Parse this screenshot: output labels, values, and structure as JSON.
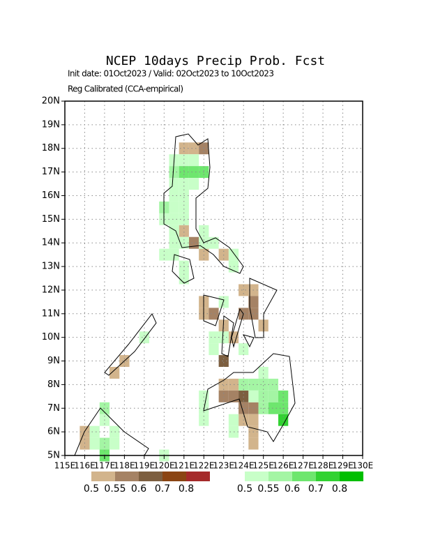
{
  "title": "NCEP 10days Precip Prob. Fcst",
  "subtitle": "Init date: 01Oct2023 / Valid: 02Oct2023 to 10Oct2023",
  "note": "Reg Calibrated (CCA-empirical)",
  "map": {
    "xlim": [
      115,
      130
    ],
    "ylim": [
      5,
      20
    ],
    "grid": true,
    "xticks": [
      {
        "value": 115,
        "label": "115E"
      },
      {
        "value": 116,
        "label": "116E"
      },
      {
        "value": 117,
        "label": "117E"
      },
      {
        "value": 118,
        "label": "118E"
      },
      {
        "value": 119,
        "label": "119E"
      },
      {
        "value": 120,
        "label": "120E"
      },
      {
        "value": 121,
        "label": "121E"
      },
      {
        "value": 122,
        "label": "122E"
      },
      {
        "value": 123,
        "label": "123E"
      },
      {
        "value": 124,
        "label": "124E"
      },
      {
        "value": 125,
        "label": "125E"
      },
      {
        "value": 126,
        "label": "126E"
      },
      {
        "value": 127,
        "label": "127E"
      },
      {
        "value": 128,
        "label": "128E"
      },
      {
        "value": 129,
        "label": "129E"
      },
      {
        "value": 130,
        "label": "130E"
      }
    ],
    "yticks": [
      {
        "value": 5,
        "label": "5N"
      },
      {
        "value": 6,
        "label": "6N"
      },
      {
        "value": 7,
        "label": "7N"
      },
      {
        "value": 8,
        "label": "8N"
      },
      {
        "value": 9,
        "label": "9N"
      },
      {
        "value": 10,
        "label": "10N"
      },
      {
        "value": 11,
        "label": "11N"
      },
      {
        "value": 12,
        "label": "12N"
      },
      {
        "value": 13,
        "label": "13N"
      },
      {
        "value": 14,
        "label": "14N"
      },
      {
        "value": 15,
        "label": "15N"
      },
      {
        "value": 16,
        "label": "16N"
      },
      {
        "value": 17,
        "label": "17N"
      },
      {
        "value": 18,
        "label": "18N"
      },
      {
        "value": 19,
        "label": "19N"
      },
      {
        "value": 20,
        "label": "20N"
      }
    ],
    "dry_cells": [
      [
        121,
        18,
        0
      ],
      [
        121.5,
        18,
        0
      ],
      [
        122,
        18,
        1
      ],
      [
        121,
        14.5,
        0
      ],
      [
        121.5,
        14,
        1
      ],
      [
        122,
        13.5,
        0
      ],
      [
        123,
        13.5,
        0
      ],
      [
        122,
        11.5,
        0
      ],
      [
        122,
        11,
        0
      ],
      [
        122.5,
        11,
        1
      ],
      [
        123,
        10.5,
        0
      ],
      [
        123,
        9,
        2
      ],
      [
        124,
        12,
        0
      ],
      [
        124.5,
        12,
        0
      ],
      [
        124.5,
        11.5,
        1
      ],
      [
        124,
        11,
        1
      ],
      [
        124.5,
        11,
        1
      ],
      [
        125,
        10.5,
        0
      ],
      [
        123.5,
        10,
        0
      ],
      [
        123,
        8,
        0
      ],
      [
        123.5,
        8,
        0
      ],
      [
        123,
        7.5,
        1
      ],
      [
        123.5,
        7.5,
        1
      ],
      [
        124,
        7.5,
        2
      ],
      [
        124,
        7,
        1
      ],
      [
        124.5,
        7,
        1
      ],
      [
        124,
        6.5,
        0
      ],
      [
        124.5,
        6.5,
        0
      ],
      [
        124.5,
        6,
        0
      ],
      [
        124.5,
        5.5,
        0
      ],
      [
        116,
        6,
        0
      ],
      [
        116,
        5.5,
        0
      ],
      [
        118,
        9,
        0
      ],
      [
        117.5,
        8.5,
        0
      ]
    ],
    "wet_cells": [
      [
        120.5,
        17.5,
        0
      ],
      [
        121,
        17.5,
        0
      ],
      [
        121.5,
        17.5,
        0
      ],
      [
        120.5,
        17,
        1
      ],
      [
        121,
        17,
        2
      ],
      [
        121.5,
        17,
        2
      ],
      [
        122,
        17,
        2
      ],
      [
        120.5,
        16.5,
        0
      ],
      [
        121,
        16.5,
        0
      ],
      [
        121.5,
        16.5,
        0
      ],
      [
        120.5,
        16,
        0
      ],
      [
        121,
        16,
        0
      ],
      [
        120,
        15.5,
        1
      ],
      [
        120.5,
        15.5,
        0
      ],
      [
        121,
        15.5,
        0
      ],
      [
        120,
        15,
        0
      ],
      [
        120.5,
        15,
        0
      ],
      [
        121,
        15,
        0
      ],
      [
        120.5,
        14.5,
        0
      ],
      [
        122,
        14.5,
        0
      ],
      [
        120.5,
        14,
        0
      ],
      [
        121,
        14,
        0
      ],
      [
        122,
        14,
        0
      ],
      [
        122.5,
        14,
        0
      ],
      [
        120,
        13.5,
        0
      ],
      [
        120.5,
        13.5,
        0
      ],
      [
        123.5,
        13.5,
        0
      ],
      [
        121,
        13,
        0
      ],
      [
        123.5,
        13,
        0
      ],
      [
        121,
        12.5,
        0
      ],
      [
        123,
        11.5,
        0
      ],
      [
        119,
        10,
        0
      ],
      [
        122.5,
        10,
        0
      ],
      [
        123,
        10,
        0
      ],
      [
        122.5,
        9.5,
        0
      ],
      [
        124,
        9.5,
        0
      ],
      [
        125,
        8.5,
        0
      ],
      [
        124,
        8,
        1
      ],
      [
        124.5,
        8,
        1
      ],
      [
        125,
        8,
        1
      ],
      [
        125.5,
        8,
        1
      ],
      [
        125,
        7.5,
        1
      ],
      [
        125.5,
        7.5,
        1
      ],
      [
        126,
        7.5,
        2
      ],
      [
        122,
        7.5,
        0
      ],
      [
        124.5,
        7.5,
        0
      ],
      [
        122,
        7,
        0
      ],
      [
        125,
        7,
        1
      ],
      [
        125.5,
        7,
        2
      ],
      [
        126,
        7,
        2
      ],
      [
        122,
        6.5,
        0
      ],
      [
        123.5,
        6.5,
        0
      ],
      [
        126,
        6.5,
        3
      ],
      [
        123.5,
        6,
        0
      ],
      [
        117,
        7,
        1
      ],
      [
        117,
        6.5,
        0
      ],
      [
        116.5,
        6,
        0
      ],
      [
        116.5,
        5.5,
        0
      ],
      [
        117,
        5.5,
        1
      ],
      [
        117.5,
        5.5,
        0
      ],
      [
        117.5,
        6,
        0
      ],
      [
        117,
        5,
        2
      ],
      [
        120,
        5,
        0
      ]
    ]
  },
  "legend": {
    "dry": {
      "colors": [
        "#d2b48c",
        "#a58264",
        "#7d5f40",
        "#8b4513",
        "#a52a2a"
      ],
      "labels": [
        "0.5",
        "0.55",
        "0.6",
        "0.7",
        "0.8"
      ]
    },
    "wet": {
      "colors": [
        "#c8ffc8",
        "#a4f5a4",
        "#6ee66e",
        "#32d232",
        "#00be00"
      ],
      "labels": [
        "0.5",
        "0.55",
        "0.6",
        "0.7",
        "0.8"
      ]
    }
  }
}
